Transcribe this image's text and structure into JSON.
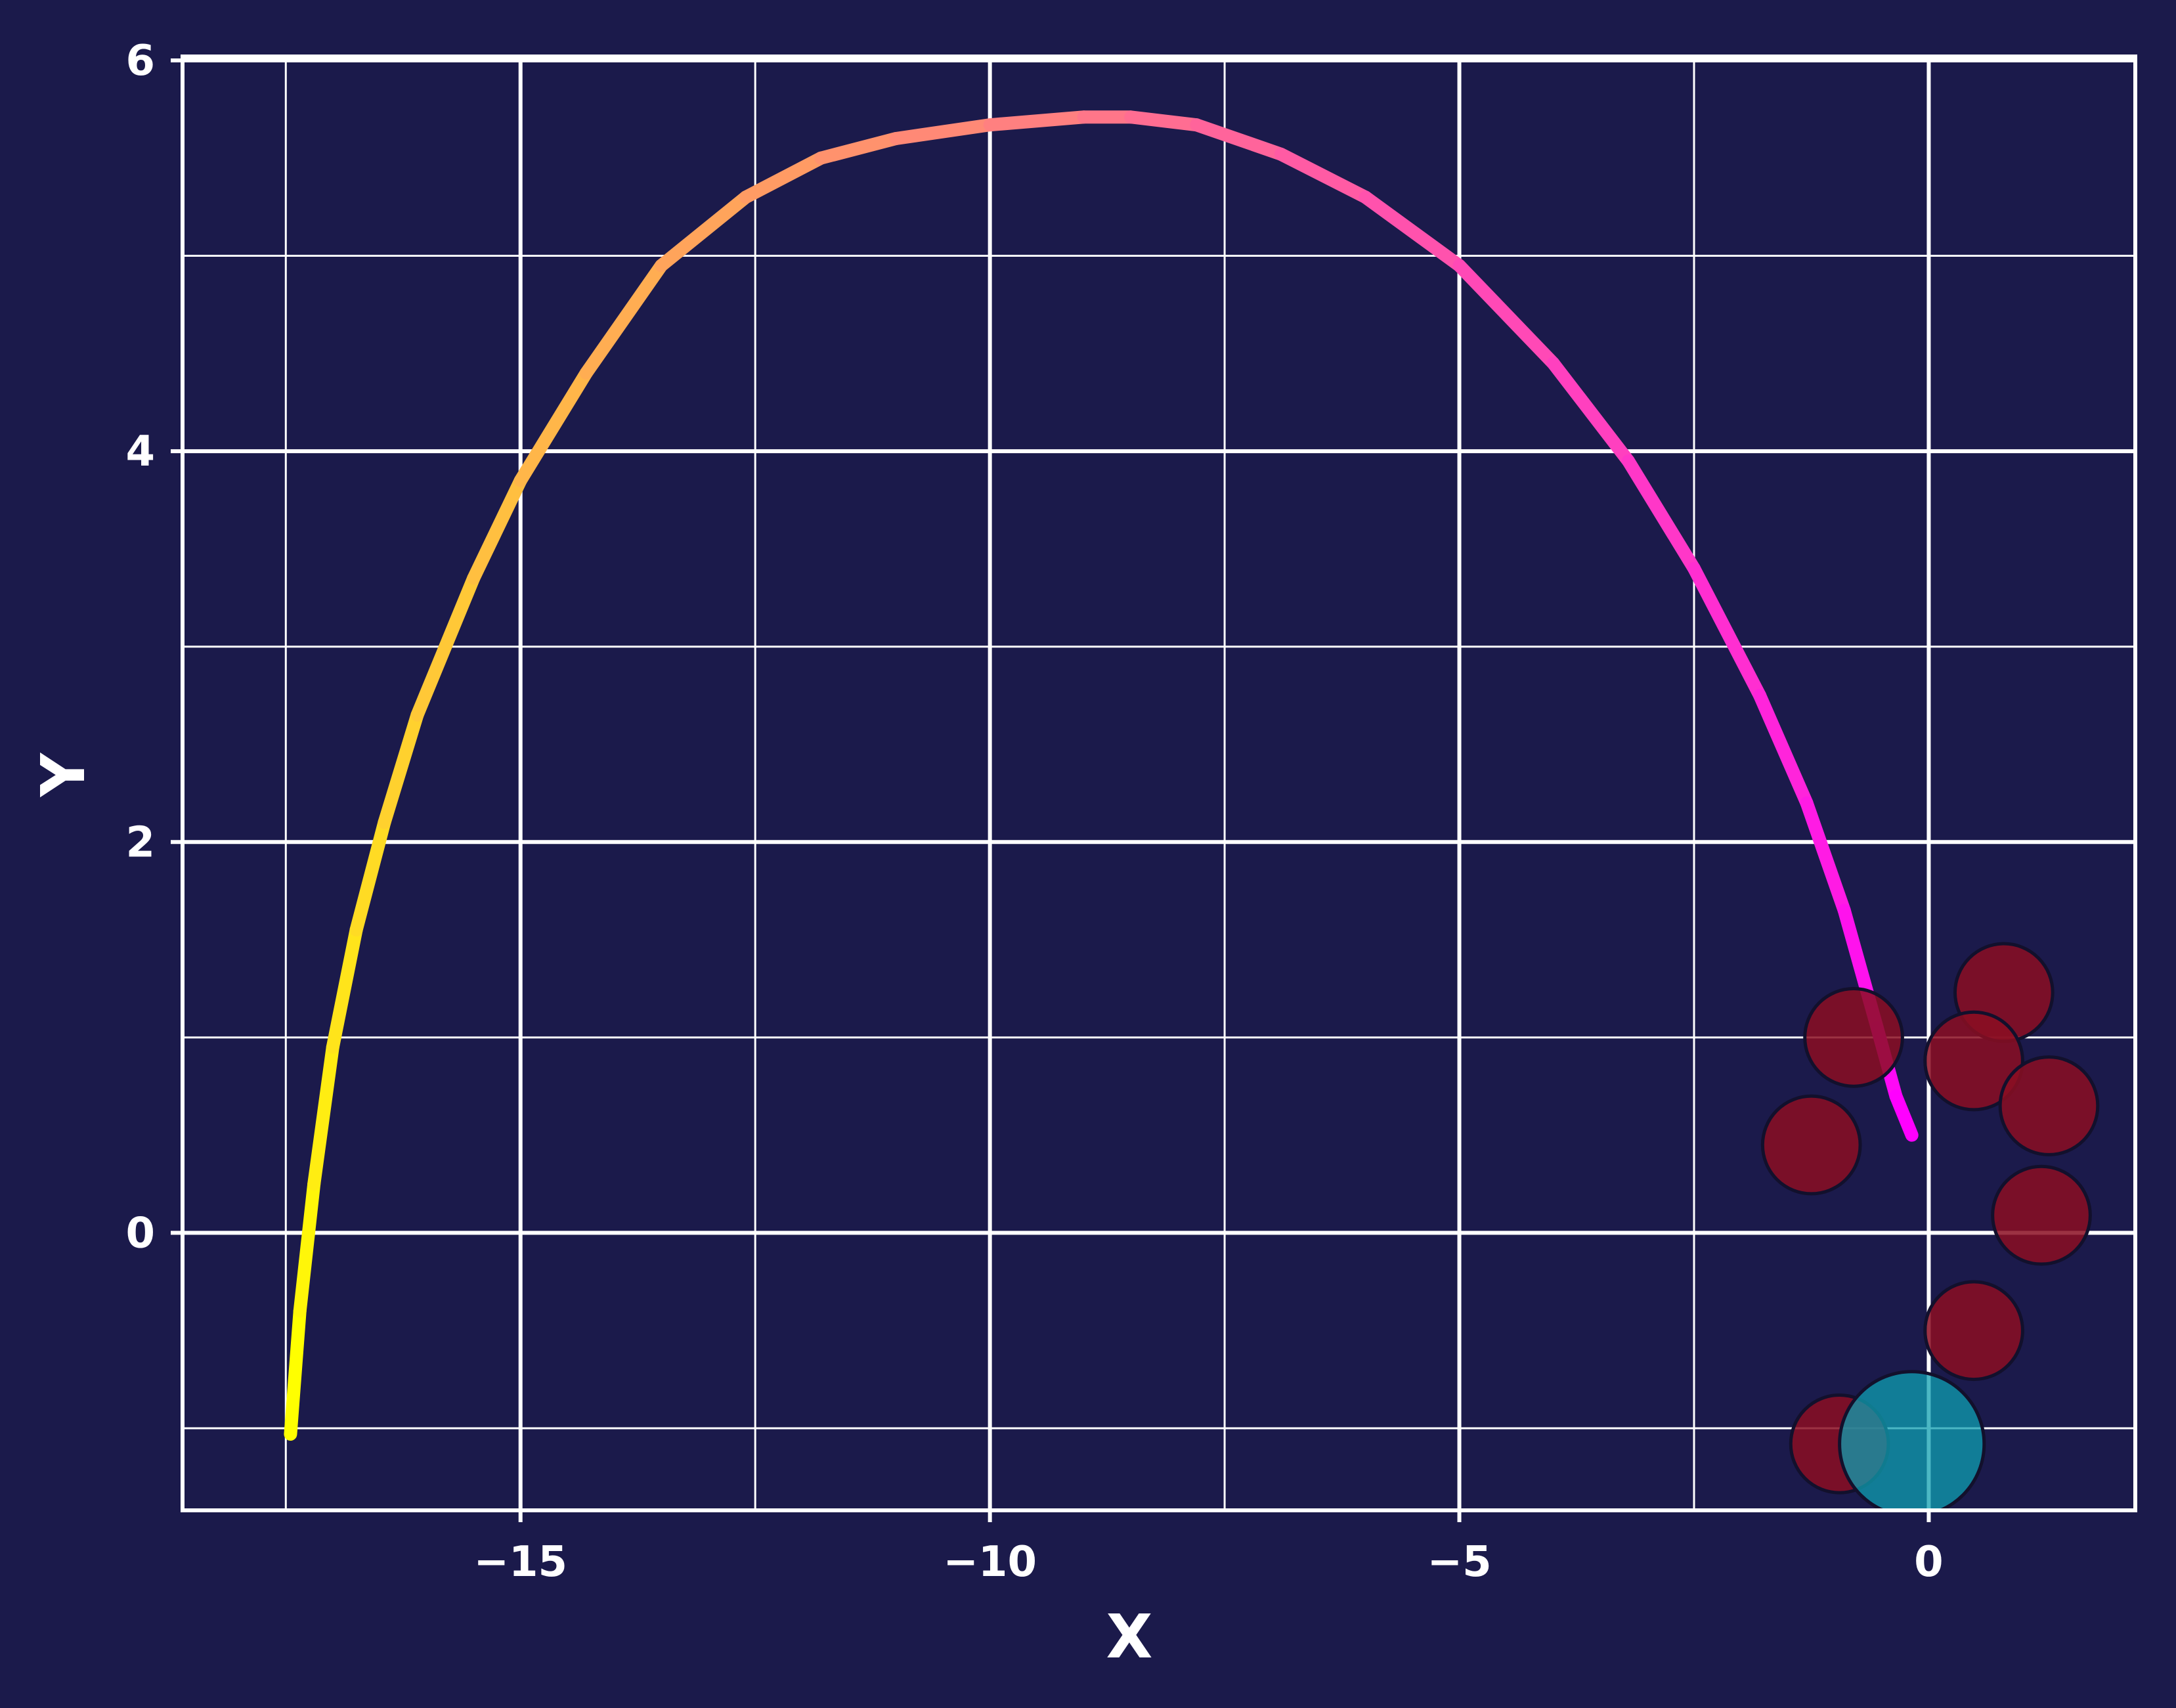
{
  "chart_data": {
    "type": "scatter",
    "title": "",
    "xlabel": "X",
    "ylabel": "Y",
    "xlim": [
      -18.6,
      2.2
    ],
    "ylim": [
      -1.42,
      6.02
    ],
    "xticks": [
      -15,
      -10,
      -5,
      0
    ],
    "xtick_labels": [
      "−15",
      "−10",
      "−5",
      "0"
    ],
    "yticks": [
      0,
      2,
      4,
      6
    ],
    "ytick_labels": [
      "0",
      "2",
      "4",
      "6"
    ],
    "minor_grid_x": [
      -17.5,
      -12.5,
      -7.5,
      -2.5
    ],
    "minor_grid_y": [
      -1,
      1,
      3,
      5
    ],
    "grid": true,
    "colors": {
      "background": "#1b1a4b",
      "grid": "#ffffff",
      "text": "#ffffff",
      "path_start": "#ffff00",
      "path_end": "#ff00ff",
      "obstacle": "#8b0e22",
      "goal": "#0f9fb0"
    },
    "trajectory": {
      "x": [
        -17.45,
        -17.35,
        -17.2,
        -17.0,
        -16.75,
        -16.45,
        -16.1,
        -15.5,
        -15.0,
        -14.3,
        -13.5,
        -12.6,
        -11.8,
        -11.0,
        -10.0,
        -9.0,
        -8.5,
        -7.8,
        -6.9,
        -6.0,
        -5.0,
        -4.0,
        -3.2,
        -2.5,
        -1.8,
        -1.3,
        -0.9,
        -0.55,
        -0.35,
        -0.18
      ],
      "y": [
        -1.03,
        -0.4,
        0.25,
        0.95,
        1.55,
        2.1,
        2.65,
        3.35,
        3.85,
        4.4,
        4.95,
        5.3,
        5.5,
        5.6,
        5.67,
        5.71,
        5.71,
        5.67,
        5.52,
        5.3,
        4.95,
        4.45,
        3.95,
        3.4,
        2.75,
        2.2,
        1.65,
        1.05,
        0.7,
        0.5
      ]
    },
    "obstacles": [
      {
        "x": 0.8,
        "y": 1.23,
        "r": 0.52
      },
      {
        "x": -0.8,
        "y": 1.0,
        "r": 0.52
      },
      {
        "x": 0.48,
        "y": 0.88,
        "r": 0.52
      },
      {
        "x": 1.28,
        "y": 0.65,
        "r": 0.52
      },
      {
        "x": -1.25,
        "y": 0.45,
        "r": 0.52
      },
      {
        "x": 1.2,
        "y": 0.09,
        "r": 0.52
      },
      {
        "x": 0.48,
        "y": -0.5,
        "r": 0.52
      },
      {
        "x": -0.95,
        "y": -1.08,
        "r": 0.52
      }
    ],
    "goal": {
      "x": -0.18,
      "y": -1.08,
      "r": 0.77
    }
  }
}
